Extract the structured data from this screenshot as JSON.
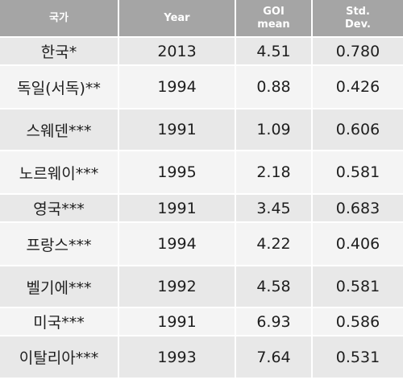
{
  "table": {
    "headers": [
      {
        "lines": [
          "국가"
        ]
      },
      {
        "lines": [
          "Year"
        ]
      },
      {
        "lines": [
          "GOI",
          "mean"
        ]
      },
      {
        "lines": [
          "Std.",
          "Dev."
        ]
      }
    ],
    "rows": [
      {
        "country": "한국*",
        "year": "2013",
        "mean": "4.51",
        "sd": "0.780"
      },
      {
        "country": "독일(서독)**",
        "year": "1994",
        "mean": "0.88",
        "sd": "0.426"
      },
      {
        "country": "스웨덴***",
        "year": "1991",
        "mean": "1.09",
        "sd": "0.606"
      },
      {
        "country": "노르웨이***",
        "year": "1995",
        "mean": "2.18",
        "sd": "0.581"
      },
      {
        "country": "영국***",
        "year": "1991",
        "mean": "3.45",
        "sd": "0.683"
      },
      {
        "country": "프랑스***",
        "year": "1994",
        "mean": "4.22",
        "sd": "0.406"
      },
      {
        "country": "벨기에***",
        "year": "1992",
        "mean": "4.58",
        "sd": "0.581"
      },
      {
        "country": "미국***",
        "year": "1991",
        "mean": "6.93",
        "sd": "0.586"
      },
      {
        "country": "이탈리아***",
        "year": "1993",
        "mean": "7.64",
        "sd": "0.531"
      }
    ]
  }
}
